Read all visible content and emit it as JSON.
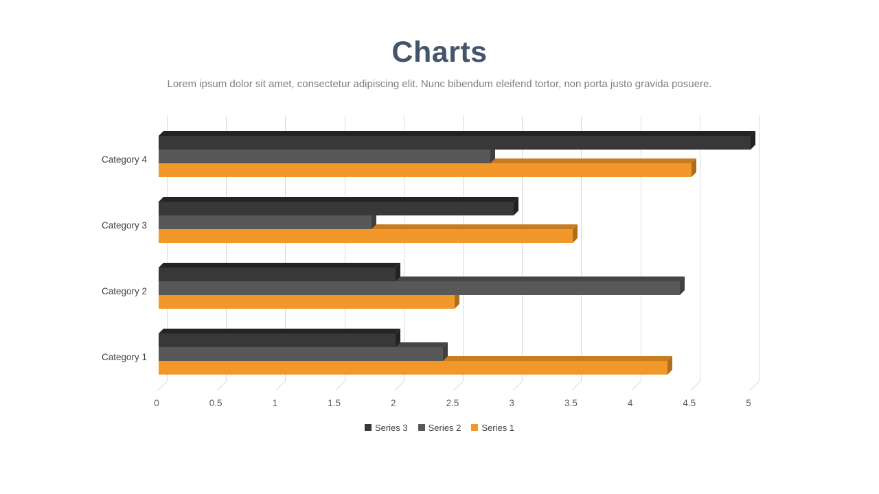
{
  "slide": {
    "title": "Charts",
    "subtitle": "Lorem ipsum dolor sit amet, consectetur adipiscing elit. Nunc bibendum eleifend tortor, non porta justo gravida posuere."
  },
  "colors": {
    "background": "#FFFFFF",
    "title_text": "#44546A",
    "subtitle_text": "#7F7F7F",
    "gridline": "#D9D9D9",
    "tick_text": "#595959",
    "category_text": "#404040",
    "legend_text": "#404040"
  },
  "chart_data": {
    "type": "bar",
    "orientation": "horizontal",
    "style": "3d-beveled",
    "title": "Charts",
    "xlabel": "",
    "ylabel": "",
    "xlim": [
      0,
      5
    ],
    "x_ticks": [
      0,
      0.5,
      1,
      1.5,
      2,
      2.5,
      3,
      3.5,
      4,
      4.5,
      5
    ],
    "grid": "vertical",
    "legend_position": "bottom",
    "legend_order": [
      "Series 3",
      "Series 2",
      "Series 1"
    ],
    "categories": [
      "Category 1",
      "Category 2",
      "Category 3",
      "Category 4"
    ],
    "category_axis_order_top_to_bottom": [
      "Category 4",
      "Category 3",
      "Category 2",
      "Category 1"
    ],
    "series": [
      {
        "name": "Series 1",
        "values": [
          4.3,
          2.5,
          3.5,
          4.5
        ],
        "color": {
          "front": "#F2982B",
          "top": "#C87C20",
          "side": "#B06E1C"
        }
      },
      {
        "name": "Series 2",
        "values": [
          2.4,
          4.4,
          1.8,
          2.8
        ],
        "color": {
          "front": "#585858",
          "top": "#454545",
          "side": "#404040"
        }
      },
      {
        "name": "Series 3",
        "values": [
          2,
          2,
          3,
          5
        ],
        "color": {
          "front": "#383838",
          "top": "#242424",
          "side": "#222222"
        }
      }
    ]
  }
}
